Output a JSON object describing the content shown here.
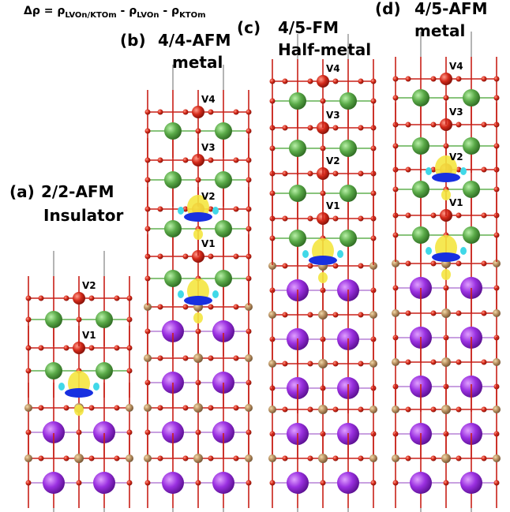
{
  "formula": {
    "lhs": "Δρ = ρ",
    "sub1": "LVOn/KTOm",
    "op1": " - ρ",
    "sub2": "LVOn",
    "op2": " - ρ",
    "sub3": "KTOm"
  },
  "panels": [
    {
      "tag": "(a)",
      "lines": [
        "2/2-AFM",
        "Insulator"
      ],
      "layers": [
        "V1",
        "V2"
      ]
    },
    {
      "tag": "(b)",
      "lines": [
        "4/4-AFM",
        "metal"
      ],
      "layers": [
        "V1",
        "V2",
        "V3",
        "V4"
      ]
    },
    {
      "tag": "(c)",
      "lines": [
        "4/5-FM",
        "Half-metal"
      ],
      "layers": [
        "V1",
        "V2",
        "V3",
        "V4"
      ]
    },
    {
      "tag": "(d)",
      "lines": [
        "4/5-AFM",
        "metal"
      ],
      "layers": [
        "V1",
        "V2",
        "V3",
        "V4"
      ]
    }
  ]
}
